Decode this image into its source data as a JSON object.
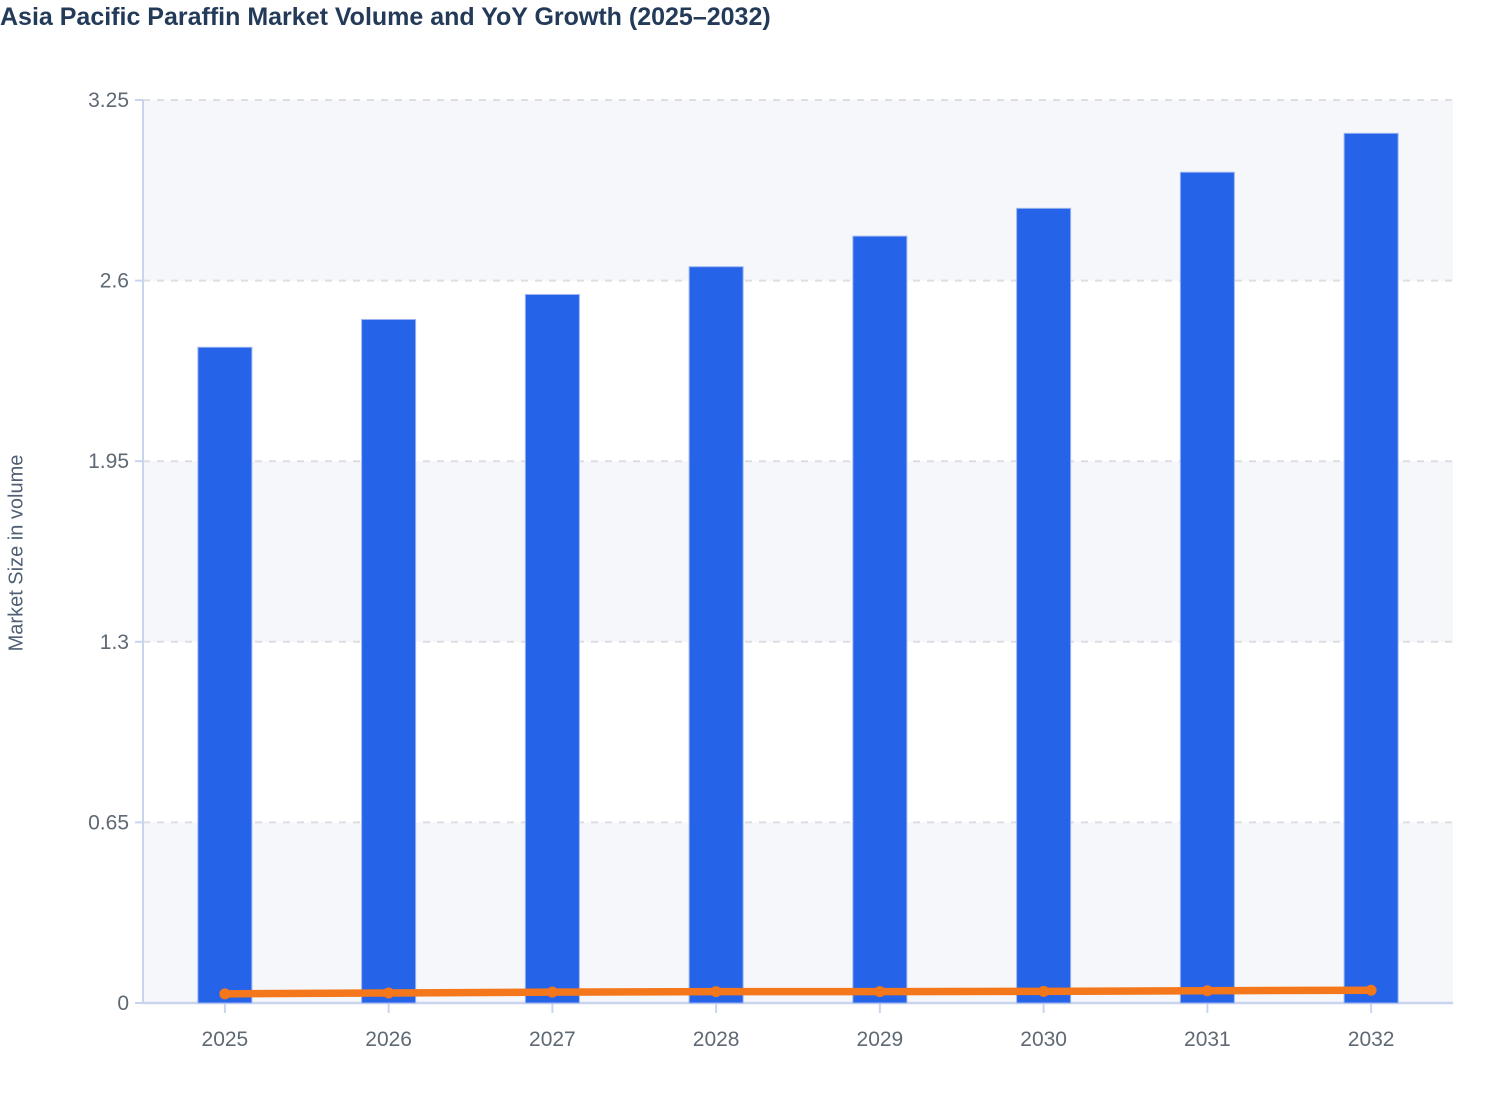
{
  "chart_data": {
    "type": "bar",
    "title": "Asia Pacific Paraffin Market Volume and YoY Growth (2025–2032)",
    "categories": [
      "2025",
      "2026",
      "2027",
      "2028",
      "2029",
      "2030",
      "2031",
      "2032"
    ],
    "series": [
      {
        "name": "Market Size in volume",
        "type": "bar",
        "values": [
          2.36,
          2.46,
          2.55,
          2.65,
          2.76,
          2.86,
          2.99,
          3.13
        ],
        "color": "#2563e8"
      },
      {
        "name": "YoY Growth",
        "type": "line",
        "values": [
          0.033,
          0.036,
          0.039,
          0.041,
          0.041,
          0.042,
          0.044,
          0.046
        ],
        "values_percent": [
          3.3,
          3.6,
          3.9,
          4.1,
          4.1,
          4.2,
          4.4,
          4.6
        ],
        "color": "#f4771b",
        "note": "flat line near zero, plotted as fractions on the left axis with round markers"
      }
    ],
    "xlabel": "",
    "ylabel": "Market Size in volume",
    "ylim": [
      0,
      3.25
    ],
    "yticks": [
      0,
      0.65,
      1.3,
      1.95,
      2.6,
      3.25
    ],
    "ytick_labels": [
      "0",
      "0.65",
      "1.3",
      "1.95",
      "2.6",
      "3.25"
    ],
    "grid": "horizontal dashed gridlines at each y tick",
    "legend": "none",
    "plot_bands": "alternating light-gray horizontal bands between gridlines (0-0.65, 1.3-1.95, 2.6-3.25 shaded)",
    "colors": {
      "title_text": "#233a59",
      "bar_fill": "#2563e8",
      "bar_border": "#9db4f0",
      "line": "#f4771b",
      "band_fill": "#f6f7fa",
      "gridline": "#dcdee2",
      "axis_line": "#c9d4ee",
      "tick_text": "#5f6974",
      "axis_title_text": "#4f5f74"
    }
  }
}
